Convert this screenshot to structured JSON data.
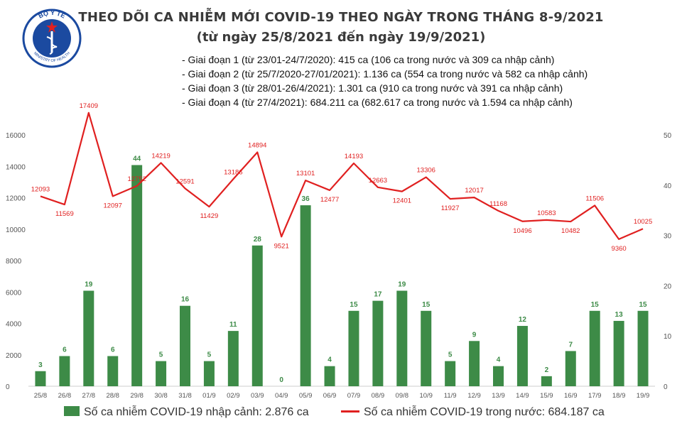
{
  "logo": {
    "top_text": "BỘ Y TẾ",
    "bottom_text": "MINISTRY OF HEALTH"
  },
  "header": {
    "title": "THEO DÕI CA NHIỄM MỚI COVID-19 THEO NGÀY TRONG THÁNG 8-9/2021",
    "subtitle": "(từ ngày 25/8/2021 đến ngày 19/9/2021)"
  },
  "phases": [
    "- Giai đoạn 1 (từ 23/01-24/7/2020): 415 ca (106 ca trong nước và 309 ca nhập cảnh)",
    "- Giai đoạn 2 (từ 25/7/2020-27/01/2021): 1.136 ca (554 ca trong nước và 582 ca nhập cảnh)",
    "- Giai đoạn 3 (từ 28/01-26/4/2021): 1.301 ca (910 ca trong nước và 391 ca nhập cảnh)",
    "- Giai đoạn 4 (từ 27/4/2021): 684.211 ca (682.617 ca trong nước và 1.594 ca nhập cảnh)"
  ],
  "legend": {
    "bar_label": "Số ca nhiễm COVID-19 nhập cảnh: 2.876 ca",
    "line_label": "Số ca nhiễm COVID-19 trong nước: 684.187 ca"
  },
  "colors": {
    "bar": "#3d8b47",
    "line": "#e02020",
    "bar_label": "#3d8b47",
    "line_label": "#e02020",
    "axis_text": "#555555"
  },
  "chart_data": {
    "type": "bar",
    "categories": [
      "25/8",
      "26/8",
      "27/8",
      "28/8",
      "29/8",
      "30/8",
      "31/8",
      "01/9",
      "02/9",
      "03/9",
      "04/9",
      "05/9",
      "06/9",
      "07/9",
      "08/9",
      "09/8",
      "10/9",
      "11/9",
      "12/9",
      "13/9",
      "14/9",
      "15/9",
      "16/9",
      "17/9",
      "18/9",
      "19/9"
    ],
    "series": [
      {
        "name": "Số ca nhiễm COVID-19 nhập cảnh: 2.876 ca",
        "type": "bar",
        "axis": "right",
        "values": [
          3,
          6,
          19,
          6,
          44,
          5,
          16,
          5,
          11,
          28,
          0,
          36,
          4,
          15,
          17,
          19,
          15,
          5,
          9,
          4,
          12,
          2,
          7,
          15,
          13,
          15
        ]
      },
      {
        "name": "Số ca nhiễm COVID-19 trong nước: 684.187 ca",
        "type": "line",
        "axis": "left",
        "values": [
          12093,
          11569,
          17409,
          12097,
          12752,
          14219,
          12591,
          11429,
          13186,
          14894,
          9521,
          13101,
          12477,
          14193,
          12663,
          12401,
          13306,
          11927,
          12017,
          11168,
          10496,
          10583,
          10482,
          11506,
          9360,
          10025
        ]
      }
    ],
    "y_left": {
      "ylim": [
        0,
        16000
      ],
      "ticks": [
        0,
        2000,
        4000,
        6000,
        8000,
        10000,
        12000,
        14000,
        16000
      ]
    },
    "y_right": {
      "ylim": [
        0,
        50
      ],
      "ticks": [
        0,
        10,
        20,
        30,
        40,
        50
      ]
    },
    "legend_position": "bottom",
    "grid": false
  }
}
